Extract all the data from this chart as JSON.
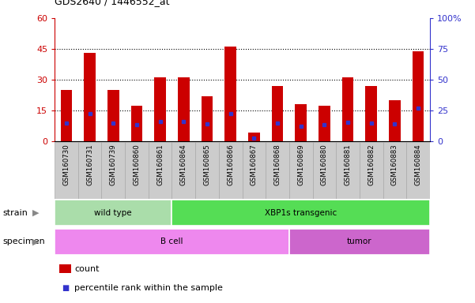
{
  "title": "GDS2640 / 1446552_at",
  "samples": [
    "GSM160730",
    "GSM160731",
    "GSM160739",
    "GSM160860",
    "GSM160861",
    "GSM160864",
    "GSM160865",
    "GSM160866",
    "GSM160867",
    "GSM160868",
    "GSM160869",
    "GSM160880",
    "GSM160881",
    "GSM160882",
    "GSM160883",
    "GSM160884"
  ],
  "counts": [
    25,
    43,
    25,
    17,
    31,
    31,
    22,
    46,
    4,
    27,
    18,
    17,
    31,
    27,
    20,
    44
  ],
  "percentiles": [
    14.5,
    22,
    14.5,
    13,
    16,
    16,
    14,
    22,
    2,
    14.5,
    12,
    13,
    15,
    14.5,
    14,
    27
  ],
  "ylim_left": [
    0,
    60
  ],
  "ylim_right": [
    0,
    100
  ],
  "yticks_left": [
    0,
    15,
    30,
    45,
    60
  ],
  "yticks_right": [
    0,
    25,
    50,
    75,
    100
  ],
  "bar_color": "#cc0000",
  "percentile_color": "#3333cc",
  "strain_groups": [
    {
      "label": "wild type",
      "start": 0,
      "end": 5,
      "color": "#aaddaa"
    },
    {
      "label": "XBP1s transgenic",
      "start": 5,
      "end": 16,
      "color": "#55dd55"
    }
  ],
  "specimen_groups": [
    {
      "label": "B cell",
      "start": 0,
      "end": 10,
      "color": "#ee88ee"
    },
    {
      "label": "tumor",
      "start": 10,
      "end": 16,
      "color": "#cc66cc"
    }
  ],
  "strain_label": "strain",
  "specimen_label": "specimen",
  "legend_count_label": "count",
  "legend_percentile_label": "percentile rank within the sample",
  "axis_color_left": "#cc0000",
  "axis_color_right": "#3333cc",
  "background_color": "#ffffff",
  "tickbox_color": "#cccccc",
  "tickbox_border": "#aaaaaa"
}
